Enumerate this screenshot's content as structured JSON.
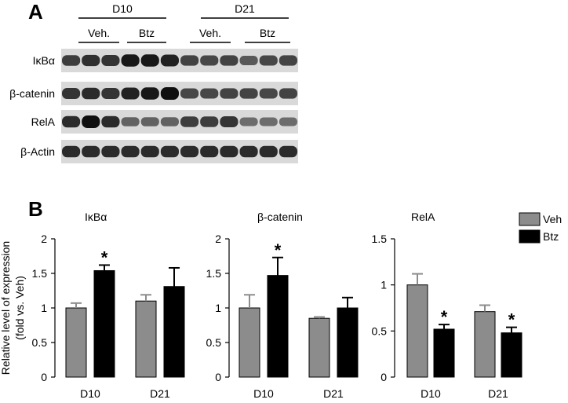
{
  "panel_a": {
    "letter": "A",
    "groups": [
      {
        "label": "D10",
        "subgroups": [
          "Veh.",
          "Btz"
        ]
      },
      {
        "label": "D21",
        "subgroups": [
          "Veh.",
          "Btz"
        ]
      }
    ],
    "rows": [
      {
        "label": "IκBα",
        "intensity": [
          0.75,
          0.82,
          0.8,
          0.95,
          0.95,
          0.9,
          0.72,
          0.7,
          0.72,
          0.6,
          0.7,
          0.72
        ]
      },
      {
        "label": "β-catenin",
        "intensity": [
          0.8,
          0.85,
          0.8,
          0.9,
          0.95,
          1.0,
          0.7,
          0.7,
          0.72,
          0.72,
          0.7,
          0.72
        ]
      },
      {
        "label": "RelA",
        "intensity": [
          0.85,
          1.0,
          0.85,
          0.55,
          0.55,
          0.55,
          0.75,
          0.75,
          0.8,
          0.5,
          0.5,
          0.5
        ]
      },
      {
        "label": "β-Actin",
        "intensity": [
          0.85,
          0.85,
          0.85,
          0.85,
          0.85,
          0.85,
          0.85,
          0.85,
          0.85,
          0.85,
          0.85,
          0.85
        ]
      }
    ]
  },
  "panel_b": {
    "letter": "B",
    "ylabel_line1": "Relative level of expression",
    "ylabel_line2": "(fold vs. Veh)",
    "legend": [
      {
        "name": "Veh",
        "color": "#8c8c8c"
      },
      {
        "name": "Btz",
        "color": "#000000"
      }
    ]
  },
  "chart_data": [
    {
      "type": "bar",
      "title": "IκBα",
      "categories": [
        "D10",
        "D21"
      ],
      "ylim": [
        0,
        2
      ],
      "yticks": [
        "0",
        "0.5",
        "1",
        "1.5",
        "2"
      ],
      "series": [
        {
          "name": "Veh",
          "color": "#8c8c8c",
          "values": [
            1.0,
            1.1
          ],
          "errors": [
            0.07,
            0.09
          ]
        },
        {
          "name": "Btz",
          "color": "#000000",
          "values": [
            1.54,
            1.31
          ],
          "errors": [
            0.08,
            0.27
          ]
        }
      ],
      "significance": [
        {
          "series": "Btz",
          "category": "D10",
          "mark": "*"
        }
      ]
    },
    {
      "type": "bar",
      "title": "β-catenin",
      "categories": [
        "D10",
        "D21"
      ],
      "ylim": [
        0,
        2
      ],
      "yticks": [
        "0",
        "0.5",
        "1",
        "1.5",
        "2"
      ],
      "series": [
        {
          "name": "Veh",
          "color": "#8c8c8c",
          "values": [
            1.0,
            0.85
          ],
          "errors": [
            0.19,
            0.02
          ]
        },
        {
          "name": "Btz",
          "color": "#000000",
          "values": [
            1.47,
            1.0
          ],
          "errors": [
            0.26,
            0.15
          ]
        }
      ],
      "significance": [
        {
          "series": "Btz",
          "category": "D10",
          "mark": "*"
        }
      ]
    },
    {
      "type": "bar",
      "title": "RelA",
      "categories": [
        "D10",
        "D21"
      ],
      "ylim": [
        0,
        1.5
      ],
      "yticks": [
        "0",
        "0.5",
        "1",
        "1.5"
      ],
      "series": [
        {
          "name": "Veh",
          "color": "#8c8c8c",
          "values": [
            1.0,
            0.71
          ],
          "errors": [
            0.12,
            0.07
          ]
        },
        {
          "name": "Btz",
          "color": "#000000",
          "values": [
            0.52,
            0.48
          ],
          "errors": [
            0.05,
            0.06
          ]
        }
      ],
      "significance": [
        {
          "series": "Btz",
          "category": "D10",
          "mark": "*"
        },
        {
          "series": "Btz",
          "category": "D21",
          "mark": "*"
        }
      ]
    }
  ]
}
